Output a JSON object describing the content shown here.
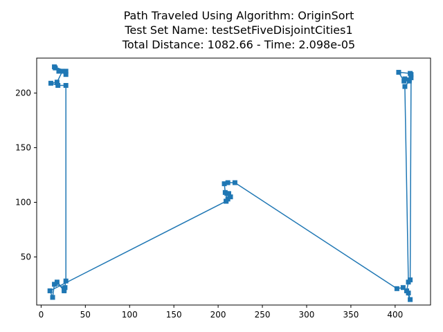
{
  "chart_data": {
    "type": "line",
    "title_lines": [
      "Path Traveled Using Algorithm: OriginSort",
      "Test Set Name: testSetFiveDisjointCities1",
      "Total Distance: 1082.66 - Time: 2.098e-05"
    ],
    "xlabel": "",
    "ylabel": "",
    "xlim": [
      -5,
      440
    ],
    "ylim": [
      6,
      232
    ],
    "x_ticks": [
      0,
      50,
      100,
      150,
      200,
      250,
      300,
      350,
      400
    ],
    "y_ticks": [
      50,
      100,
      150,
      200
    ],
    "grid": false,
    "legend": "none",
    "line_color": "#1f77b4",
    "marker": "square",
    "series": [
      {
        "x": [
          28,
          21,
          16,
          20,
          15,
          28,
          24,
          18,
          11,
          19,
          28,
          28,
          26,
          18,
          26,
          27,
          15,
          13,
          10,
          209,
          211,
          212,
          214,
          209,
          210,
          208,
          207,
          211,
          219,
          402,
          409,
          415,
          417,
          413,
          415,
          411,
          416,
          417,
          404,
          410,
          411,
          416,
          418,
          418,
          417
        ],
        "y": [
          217,
          220,
          223,
          220,
          224,
          220,
          220,
          210,
          209,
          207,
          207,
          28,
          19,
          27,
          20,
          22,
          25,
          13,
          19,
          101,
          103,
          108,
          105,
          101,
          108,
          109,
          117,
          118,
          118,
          21,
          22,
          17,
          11,
          19,
          27,
          206,
          211,
          218,
          219,
          211,
          213,
          212,
          214,
          217,
          29
        ]
      }
    ]
  }
}
